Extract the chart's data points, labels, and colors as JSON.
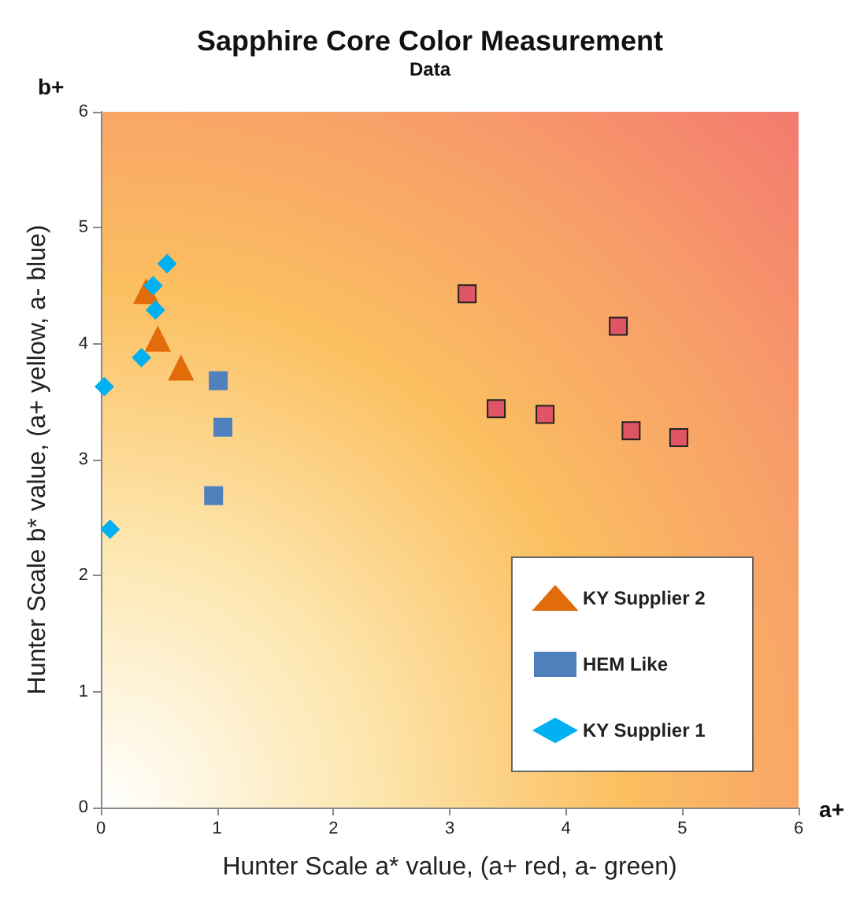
{
  "chart_data": {
    "type": "scatter",
    "title": "Sapphire Core Color Measurement",
    "subtitle": "Data",
    "xlabel": "Hunter Scale a* value, (a+ red, a- green)",
    "ylabel": "Hunter Scale b* value, (a+ yellow, a- blue)",
    "annotations": [
      "a+",
      "b+"
    ],
    "xlim": [
      0,
      6
    ],
    "ylim": [
      0,
      6
    ],
    "xticks": [
      0,
      1,
      2,
      3,
      4,
      5,
      6
    ],
    "yticks": [
      0,
      1,
      2,
      3,
      4,
      5,
      6
    ],
    "grid": false,
    "legend": "bottom right",
    "series": [
      {
        "color": "#e05565",
        "marker": "square",
        "x": [
          3.15,
          4.45,
          3.4,
          3.82,
          4.56,
          4.97
        ],
        "values": [
          4.43,
          4.15,
          3.44,
          3.39,
          3.25,
          3.19
        ]
      },
      {
        "name": "KY Supplier 2",
        "color": "#e36c0a",
        "marker": "triangle",
        "x": [
          0.39,
          0.49,
          0.69
        ],
        "values": [
          4.45,
          4.04,
          3.79
        ]
      },
      {
        "name": "HEM Like",
        "color": "#4f81bd",
        "marker": "square",
        "x": [
          1.01,
          1.05,
          0.97
        ],
        "values": [
          3.68,
          3.28,
          2.69
        ]
      },
      {
        "name": "KY Supplier 1",
        "color": "#00b0f0",
        "marker": "diamond",
        "x": [
          0.57,
          0.45,
          0.47,
          0.35,
          0.03,
          0.08
        ],
        "values": [
          4.69,
          4.5,
          4.29,
          3.88,
          3.63,
          2.4
        ]
      }
    ]
  }
}
